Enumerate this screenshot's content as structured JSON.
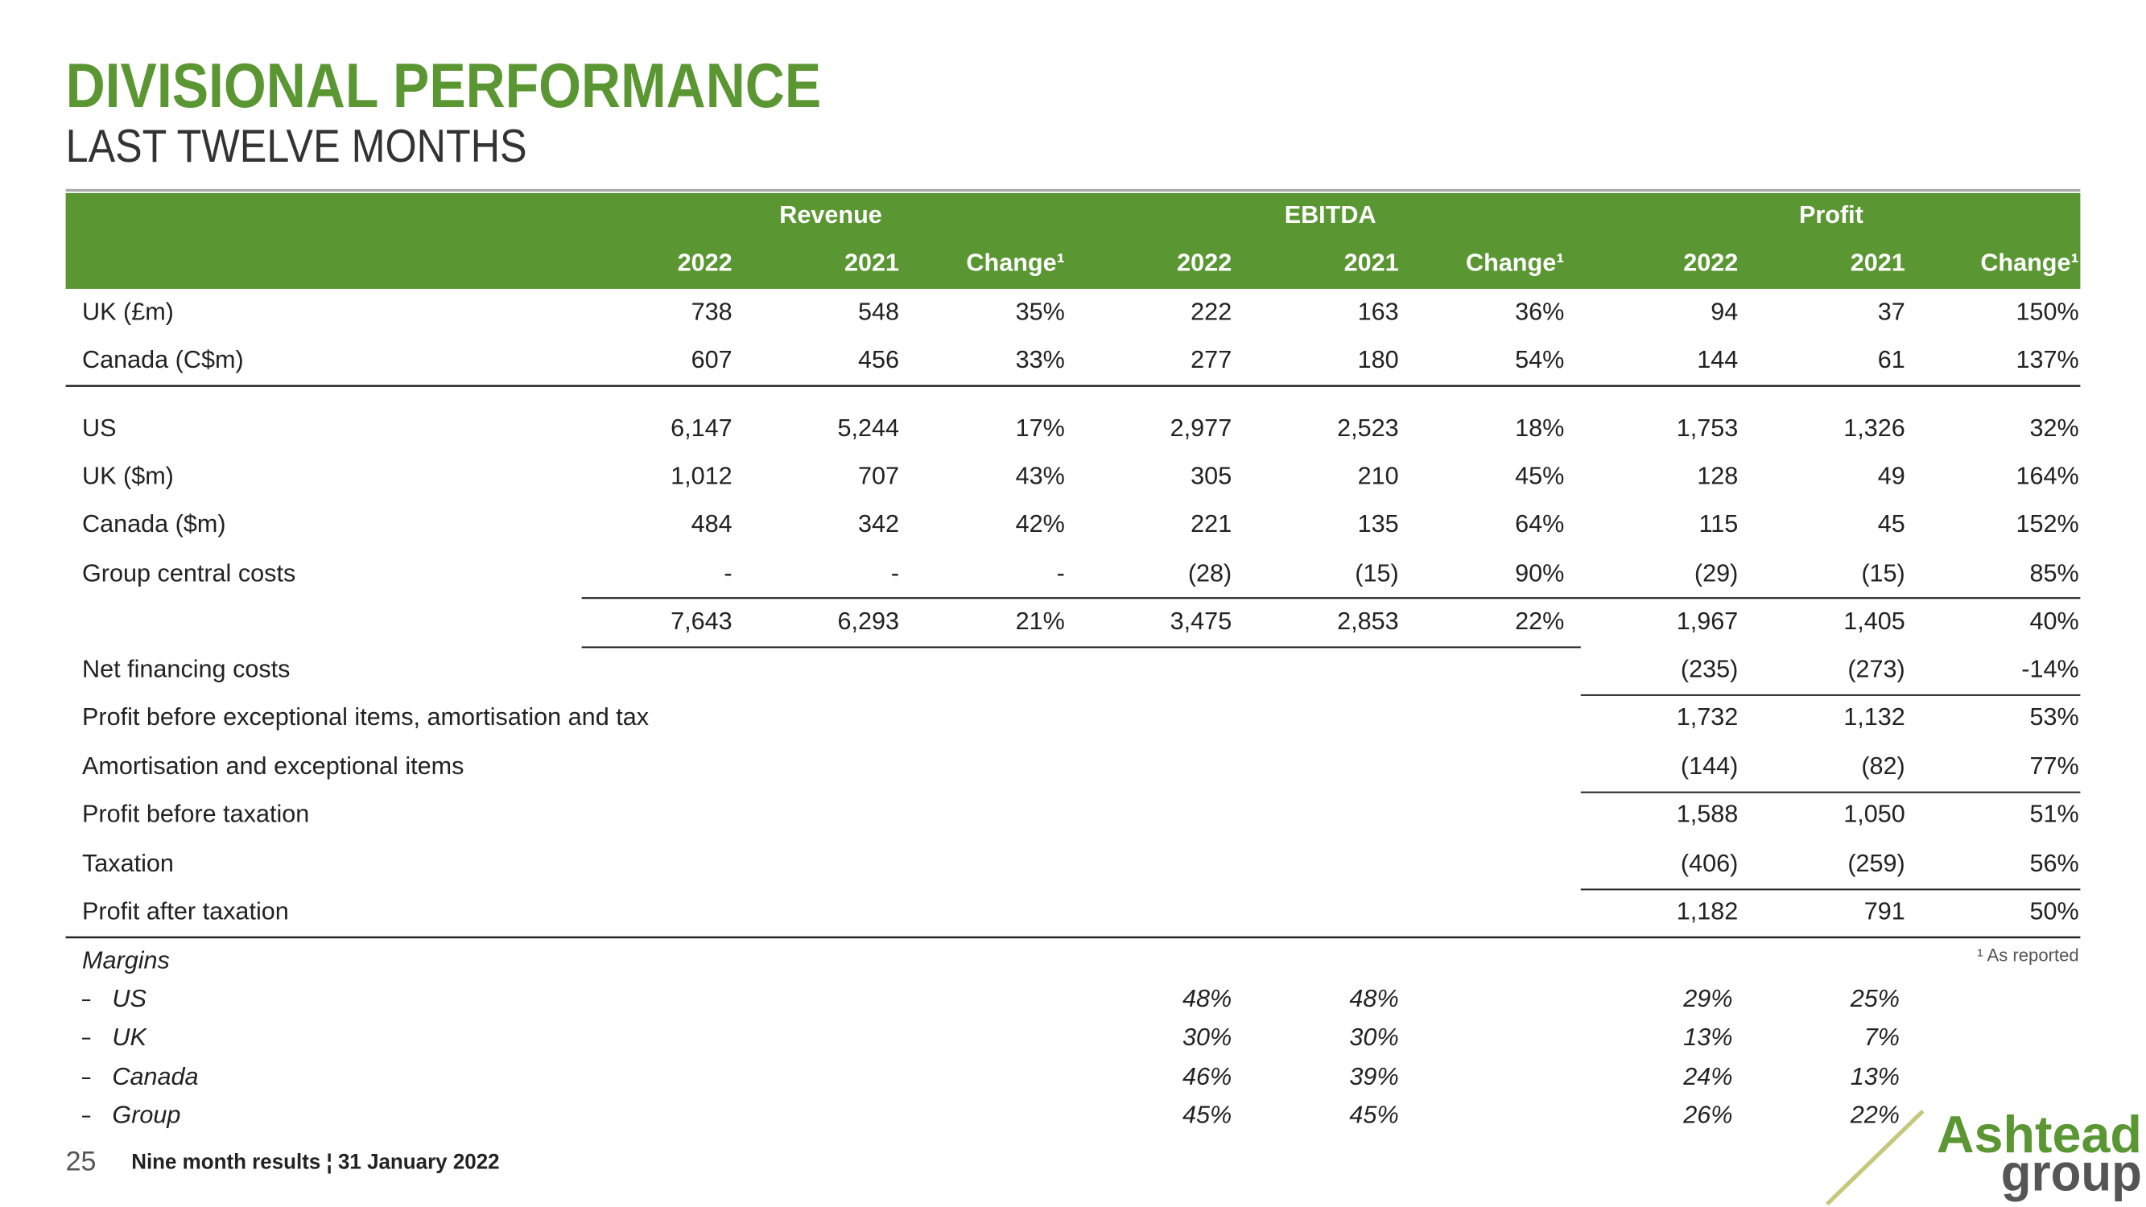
{
  "header": {
    "title": "DIVISIONAL PERFORMANCE",
    "subtitle": "LAST TWELVE MONTHS"
  },
  "table": {
    "groups": [
      "Revenue",
      "EBITDA",
      "Profit"
    ],
    "columns": [
      "2022",
      "2021",
      "Change¹",
      "2022",
      "2021",
      "Change¹",
      "2022",
      "2021",
      "Change¹"
    ],
    "rows": [
      {
        "label": "UK (£m)",
        "cells": [
          "738",
          "548",
          "35%",
          "222",
          "163",
          "36%",
          "94",
          "37",
          "150%"
        ]
      },
      {
        "label": "Canada (C$m)",
        "cells": [
          "607",
          "456",
          "33%",
          "277",
          "180",
          "54%",
          "144",
          "61",
          "137%"
        ]
      },
      {
        "label": "US",
        "cells": [
          "6,147",
          "5,244",
          "17%",
          "2,977",
          "2,523",
          "18%",
          "1,753",
          "1,326",
          "32%"
        ]
      },
      {
        "label": "UK ($m)",
        "cells": [
          "1,012",
          "707",
          "43%",
          "305",
          "210",
          "45%",
          "128",
          "49",
          "164%"
        ]
      },
      {
        "label": "Canada ($m)",
        "cells": [
          "484",
          "342",
          "42%",
          "221",
          "135",
          "64%",
          "115",
          "45",
          "152%"
        ]
      },
      {
        "label": "Group central costs",
        "cells": [
          "-",
          "-",
          "-",
          "(28)",
          "(15)",
          "90%",
          "(29)",
          "(15)",
          "85%"
        ]
      },
      {
        "cells": [
          "7,643",
          "6,293",
          "21%",
          "3,475",
          "2,853",
          "22%",
          "1,967",
          "1,405",
          "40%"
        ]
      },
      {
        "label": "Net financing costs",
        "cells": [
          null,
          null,
          null,
          null,
          null,
          null,
          "(235)",
          "(273)",
          "-14%"
        ]
      },
      {
        "label": "Profit before exceptional items, amortisation and tax",
        "cells": [
          null,
          null,
          null,
          null,
          null,
          null,
          "1,732",
          "1,132",
          "53%"
        ]
      },
      {
        "label": "Amortisation and exceptional items",
        "cells": [
          null,
          null,
          null,
          null,
          null,
          null,
          "(144)",
          "(82)",
          "77%"
        ]
      },
      {
        "label": "Profit before taxation",
        "cells": [
          null,
          null,
          null,
          null,
          null,
          null,
          "1,588",
          "1,050",
          "51%"
        ]
      },
      {
        "label": "Taxation",
        "cells": [
          null,
          null,
          null,
          null,
          null,
          null,
          "(406)",
          "(259)",
          "56%"
        ]
      },
      {
        "label": "Profit after taxation",
        "cells": [
          null,
          null,
          null,
          null,
          null,
          null,
          "1,182",
          "791",
          "50%"
        ]
      }
    ]
  },
  "margins": {
    "title": "Margins",
    "rows": [
      {
        "label": "US",
        "ebitda": [
          "48%",
          "48%"
        ],
        "profit": [
          "29%",
          "25%"
        ]
      },
      {
        "label": "UK",
        "ebitda": [
          "30%",
          "30%"
        ],
        "profit": [
          "13%",
          "7%"
        ]
      },
      {
        "label": "Canada",
        "ebitda": [
          "46%",
          "39%"
        ],
        "profit": [
          "24%",
          "13%"
        ]
      },
      {
        "label": "Group",
        "ebitda": [
          "45%",
          "45%"
        ],
        "profit": [
          "26%",
          "22%"
        ]
      }
    ]
  },
  "footnote": "¹ As reported",
  "footer": {
    "page": "25",
    "text": "Nine month results ¦ 31 January 2022"
  },
  "logo": {
    "line1": "Ashtead",
    "line2": "group"
  }
}
